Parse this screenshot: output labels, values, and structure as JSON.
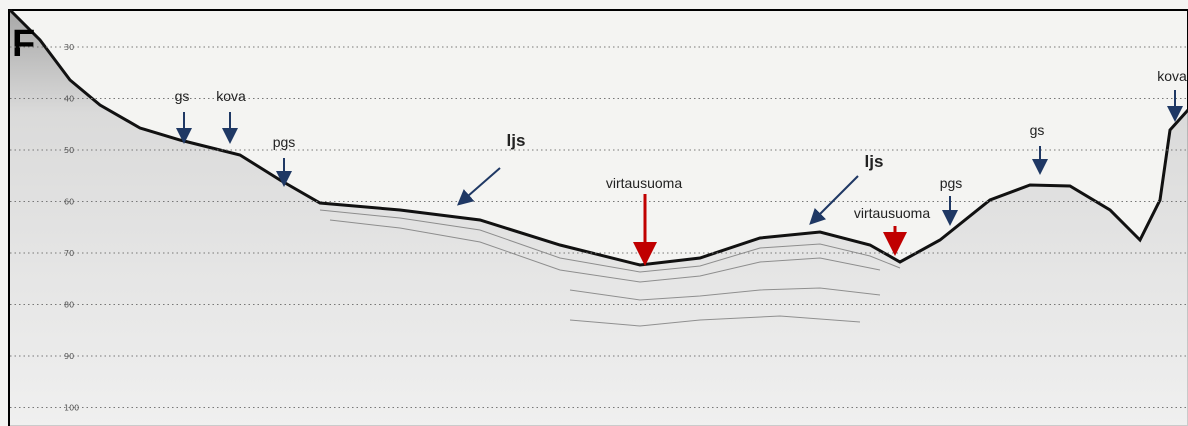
{
  "panel_label": "F",
  "depth_labels": [
    "30",
    "40",
    "50",
    "60",
    "70",
    "80",
    "90",
    "100"
  ],
  "annotations": [
    "gs",
    "kova",
    "pgs",
    "ljs",
    "virtausuoma",
    "ljs",
    "virtausuoma",
    "pgs",
    "gs",
    "kova"
  ]
}
